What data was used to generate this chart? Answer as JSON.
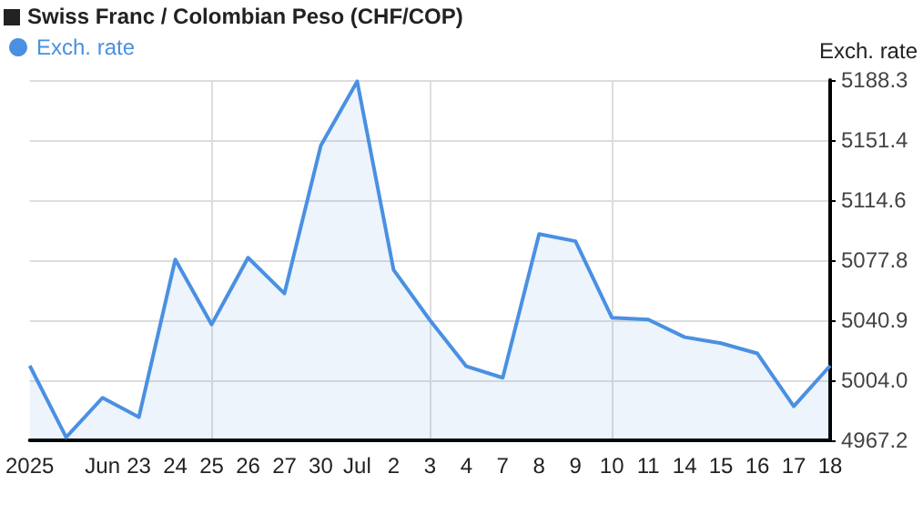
{
  "chart_data": {
    "type": "area",
    "title": "Swiss Franc / Colombian Peso (CHF/COP)",
    "ylabel": "Exch. rate",
    "categories": [
      "2025",
      null,
      "Jun",
      "23",
      "24",
      "25",
      "26",
      "27",
      "30",
      "Jul",
      "2",
      "3",
      "4",
      "7",
      "8",
      "9",
      "10",
      "11",
      "14",
      "15",
      "16",
      "17",
      "18"
    ],
    "series": [
      {
        "name": "Exch. rate",
        "color": "#4a90e2",
        "values": [
          5013.0,
          4969.1,
          4993.3,
          4981.4,
          5078.2,
          5038.3,
          5079.3,
          5057.3,
          5148.1,
          5187.5,
          5071.8,
          5040.9,
          5012.6,
          5005.6,
          5093.8,
          5089.4,
          5042.5,
          5041.3,
          5030.5,
          5026.8,
          5020.5,
          4988.1,
          5013.0
        ]
      }
    ],
    "ylim": [
      4967.2,
      5188.3
    ],
    "yticks": [
      4967.2,
      {
        "value": 5004,
        "label": "5004.0"
      },
      5040.9,
      5077.8,
      5114.6,
      5151.4,
      5188.3
    ],
    "grid": true,
    "legend": "top left",
    "marker": "none",
    "line_style": "solid"
  }
}
